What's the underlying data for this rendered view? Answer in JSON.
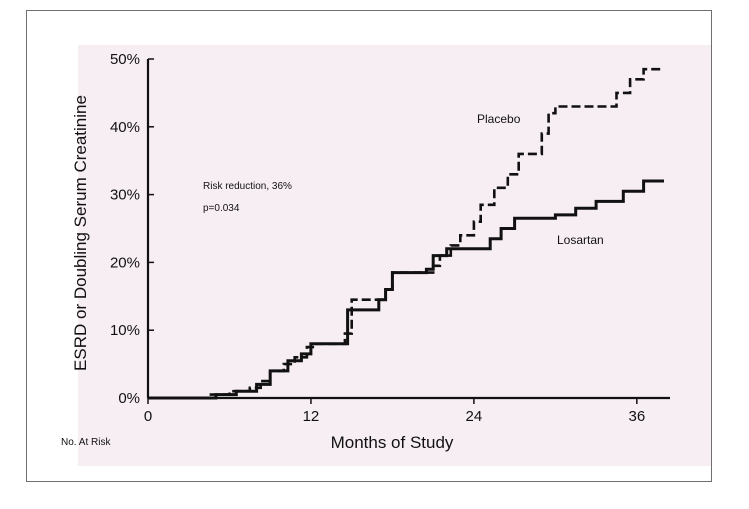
{
  "chart_data": {
    "type": "line",
    "xlabel": "Months of Study",
    "ylabel": "ESRD or Doubling Serum Creatinine",
    "xlim": [
      0,
      38
    ],
    "ylim": [
      0,
      50
    ],
    "x_ticks": [
      "0",
      "12",
      "24",
      "36"
    ],
    "y_ticks": [
      "0%",
      "10%",
      "20%",
      "30%",
      "40%",
      "50%"
    ],
    "at_risk_label": "No. At Risk",
    "annotation": [
      "Risk reduction, 36%",
      "p=0.034"
    ],
    "series": [
      {
        "name": "Placebo",
        "style": "dashed",
        "points": [
          [
            0,
            0
          ],
          [
            4.5,
            0
          ],
          [
            4.5,
            0.5
          ],
          [
            6,
            0.5
          ],
          [
            6,
            1
          ],
          [
            7.5,
            1
          ],
          [
            7.5,
            1.5
          ],
          [
            8.3,
            1.5
          ],
          [
            8.3,
            2.5
          ],
          [
            9,
            2.5
          ],
          [
            9,
            4
          ],
          [
            10,
            4
          ],
          [
            10,
            5
          ],
          [
            10.8,
            5
          ],
          [
            10.8,
            6
          ],
          [
            11.7,
            6
          ],
          [
            11.7,
            7.5
          ],
          [
            12.3,
            7.5
          ],
          [
            12.3,
            8
          ],
          [
            14.5,
            8
          ],
          [
            14.5,
            9.5
          ],
          [
            15,
            9.5
          ],
          [
            15,
            14.5
          ],
          [
            17.5,
            14.5
          ],
          [
            17.5,
            16
          ],
          [
            18,
            16
          ],
          [
            18,
            18.5
          ],
          [
            21,
            18.5
          ],
          [
            21,
            19.5
          ],
          [
            21.5,
            19.5
          ],
          [
            21.5,
            21
          ],
          [
            22.3,
            21
          ],
          [
            22.3,
            22.5
          ],
          [
            23,
            22.5
          ],
          [
            23,
            24
          ],
          [
            24,
            24
          ],
          [
            24,
            26
          ],
          [
            24.5,
            26
          ],
          [
            24.5,
            28.5
          ],
          [
            25.5,
            28.5
          ],
          [
            25.5,
            31
          ],
          [
            26.5,
            31
          ],
          [
            26.5,
            33
          ],
          [
            27.3,
            33
          ],
          [
            27.3,
            36
          ],
          [
            29,
            36
          ],
          [
            29,
            39
          ],
          [
            29.5,
            39
          ],
          [
            29.5,
            42
          ],
          [
            30,
            42
          ],
          [
            30,
            43
          ],
          [
            34.5,
            43
          ],
          [
            34.5,
            45
          ],
          [
            35.5,
            45
          ],
          [
            35.5,
            47
          ],
          [
            36.5,
            47
          ],
          [
            36.5,
            48.5
          ],
          [
            37.8,
            48.5
          ]
        ]
      },
      {
        "name": "Losartan",
        "style": "solid",
        "points": [
          [
            0,
            0
          ],
          [
            5,
            0
          ],
          [
            5,
            0.5
          ],
          [
            6.5,
            0.5
          ],
          [
            6.5,
            1
          ],
          [
            8,
            1
          ],
          [
            8,
            2
          ],
          [
            9,
            2
          ],
          [
            9,
            4
          ],
          [
            10.3,
            4
          ],
          [
            10.3,
            5.5
          ],
          [
            11.3,
            5.5
          ],
          [
            11.3,
            6.5
          ],
          [
            12,
            6.5
          ],
          [
            12,
            8
          ],
          [
            14.7,
            8
          ],
          [
            14.7,
            13
          ],
          [
            17,
            13
          ],
          [
            17,
            14.5
          ],
          [
            17.5,
            14.5
          ],
          [
            17.5,
            16
          ],
          [
            18,
            16
          ],
          [
            18,
            18.5
          ],
          [
            20.5,
            18.5
          ],
          [
            20.5,
            19
          ],
          [
            21,
            19
          ],
          [
            21,
            21
          ],
          [
            22,
            21
          ],
          [
            22,
            22
          ],
          [
            25.2,
            22
          ],
          [
            25.2,
            23.5
          ],
          [
            26,
            23.5
          ],
          [
            26,
            25
          ],
          [
            27,
            25
          ],
          [
            27,
            26.5
          ],
          [
            30,
            26.5
          ],
          [
            30,
            27
          ],
          [
            31.5,
            27
          ],
          [
            31.5,
            28
          ],
          [
            33,
            28
          ],
          [
            33,
            29
          ],
          [
            35,
            29
          ],
          [
            35,
            30.5
          ],
          [
            36.5,
            30.5
          ],
          [
            36.5,
            32
          ],
          [
            38,
            32
          ]
        ]
      }
    ]
  }
}
